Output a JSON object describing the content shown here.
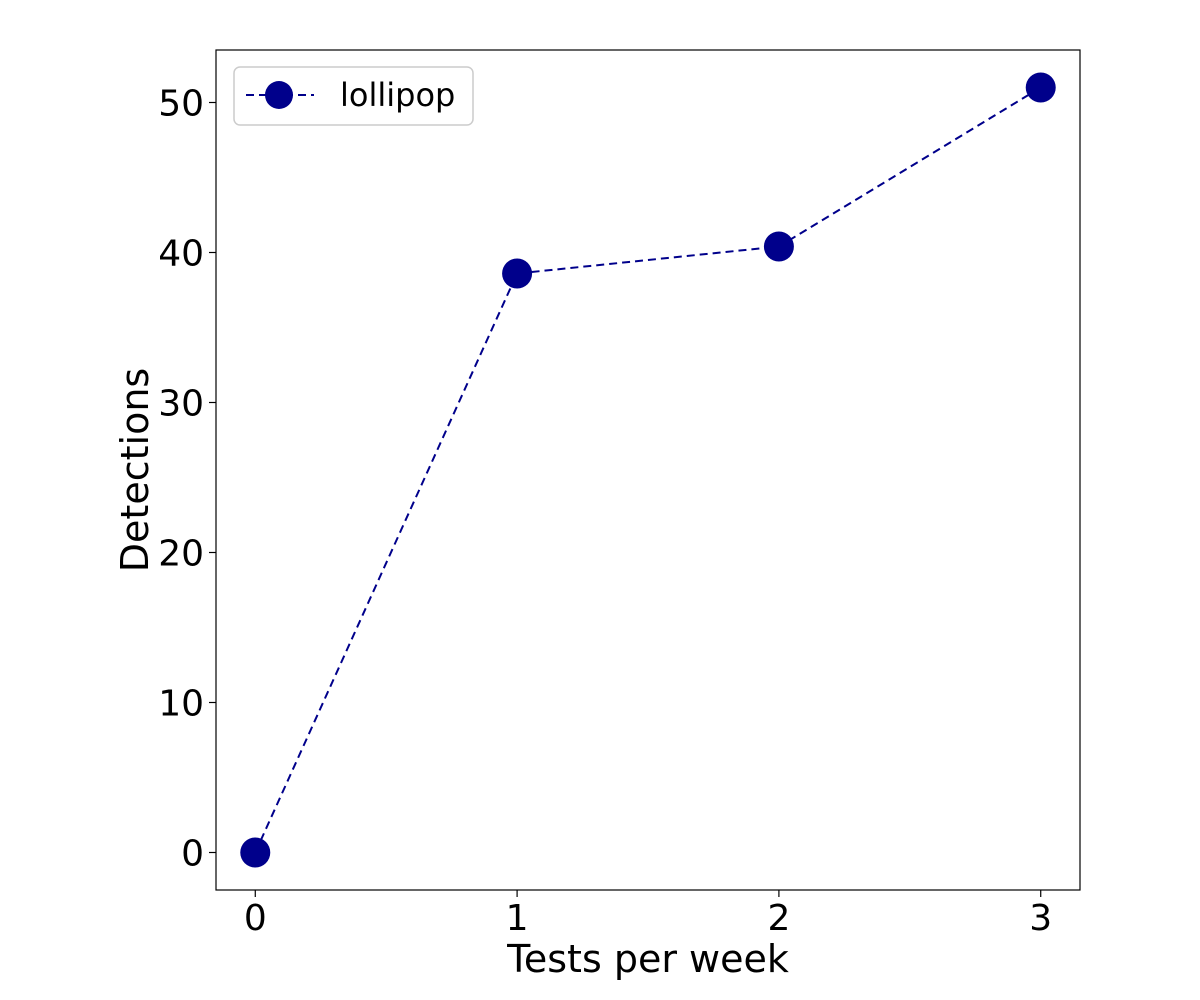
{
  "colors": {
    "series": "#00008b",
    "axes": "#000000",
    "background": "#ffffff",
    "legend_border": "#cccccc"
  },
  "chart_data": {
    "type": "line",
    "title": "",
    "xlabel": "Tests per week",
    "ylabel": "Detections",
    "x": [
      0,
      1,
      2,
      3
    ],
    "xticks": [
      "0",
      "1",
      "2",
      "3"
    ],
    "yticks": [
      "0",
      "10",
      "20",
      "30",
      "40",
      "50"
    ],
    "xlim": [
      -0.15,
      3.15
    ],
    "ylim": [
      -2.5,
      53.5
    ],
    "grid": false,
    "legend_position": "top-left",
    "line_style": "dashed",
    "marker": "circle",
    "series": [
      {
        "name": "lollipop",
        "values": [
          0,
          38.6,
          40.4,
          51.0
        ]
      }
    ]
  }
}
